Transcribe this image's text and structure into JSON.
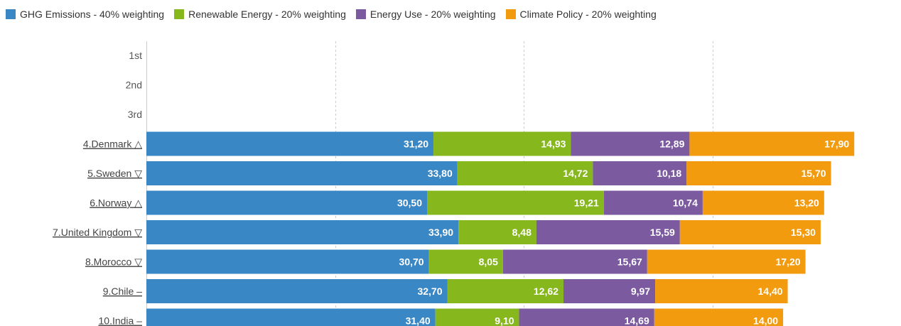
{
  "colors": {
    "ghg": "#3a87c5",
    "renewable": "#86b81e",
    "energy_use": "#7b5aa0",
    "climate_policy": "#f39b0e",
    "grid": "#cccccc"
  },
  "chart_data": {
    "type": "bar",
    "orientation": "horizontal",
    "stacked": true,
    "title": "",
    "xlabel": "",
    "ylabel": "",
    "xlim": [
      0,
      82
    ],
    "grid": "vertical dashed",
    "legend_position": "top-left",
    "categories": [
      "1st",
      "2nd",
      "3rd",
      "4.Denmark △",
      "5.Sweden ▽",
      "6.Norway △",
      "7.United Kingdom ▽",
      "8.Morocco ▽",
      "9.Chile –",
      "10.India –"
    ],
    "series": [
      {
        "name": "GHG Emissions - 40% weighting",
        "color_key": "ghg",
        "values": [
          null,
          null,
          null,
          31.2,
          33.8,
          30.5,
          33.9,
          30.7,
          32.7,
          31.4
        ],
        "labels": [
          "",
          "",
          "",
          "31,20",
          "33,80",
          "30,50",
          "33,90",
          "30,70",
          "32,70",
          "31,40"
        ]
      },
      {
        "name": "Renewable Energy - 20% weighting",
        "color_key": "renewable",
        "values": [
          null,
          null,
          null,
          14.93,
          14.72,
          19.21,
          8.48,
          8.05,
          12.62,
          9.1
        ],
        "labels": [
          "",
          "",
          "",
          "14,93",
          "14,72",
          "19,21",
          "8,48",
          "8,05",
          "12,62",
          "9,10"
        ]
      },
      {
        "name": "Energy Use - 20% weighting",
        "color_key": "energy_use",
        "values": [
          null,
          null,
          null,
          12.89,
          10.18,
          10.74,
          15.59,
          15.67,
          9.97,
          14.69
        ],
        "labels": [
          "",
          "",
          "",
          "12,89",
          "10,18",
          "10,74",
          "15,59",
          "15,67",
          "9,97",
          "14,69"
        ]
      },
      {
        "name": "Climate Policy - 20% weighting",
        "color_key": "climate_policy",
        "values": [
          null,
          null,
          null,
          17.9,
          15.7,
          13.2,
          15.3,
          17.2,
          14.4,
          14.0
        ],
        "labels": [
          "",
          "",
          "",
          "17,90",
          "15,70",
          "13,20",
          "15,30",
          "17,20",
          "14,40",
          "14,00"
        ]
      }
    ]
  }
}
